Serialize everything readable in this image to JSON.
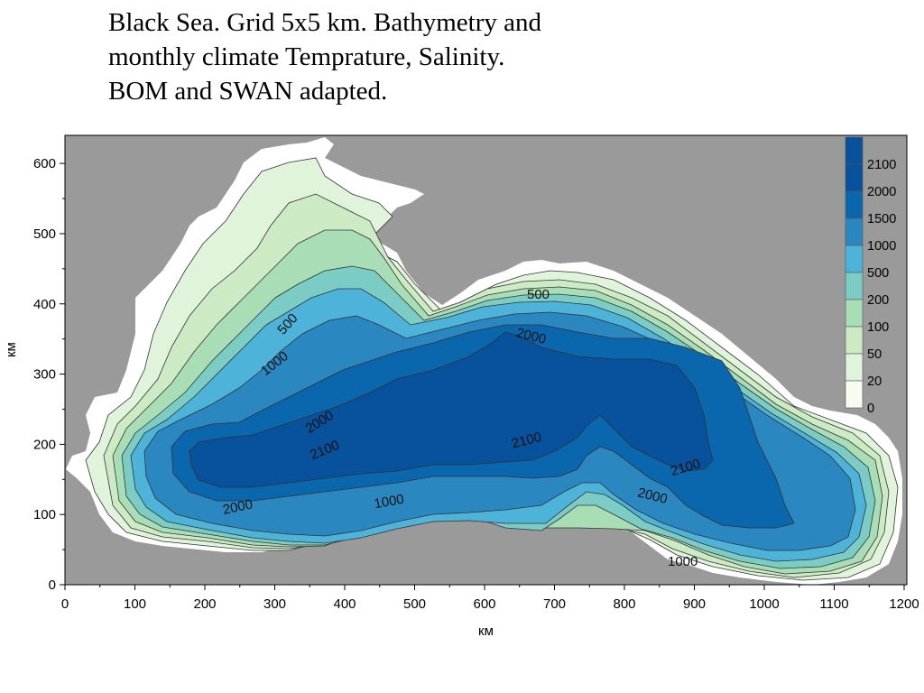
{
  "title": {
    "line1": "Black Sea. Grid 5x5 km. Bathymetry and",
    "line2": "monthly climate Temprature, Salinity.",
    "line3": "BOM and SWAN adapted."
  },
  "axes": {
    "xlabel": "км",
    "ylabel": "км",
    "xlim": [
      0,
      1200
    ],
    "ylim": [
      0,
      640
    ],
    "xticks": [
      "0",
      "100",
      "200",
      "300",
      "400",
      "500",
      "600",
      "700",
      "800",
      "900",
      "1000",
      "1100",
      "1200"
    ],
    "yticks": [
      "0",
      "100",
      "200",
      "300",
      "400",
      "500",
      "600"
    ]
  },
  "legend": {
    "labels": [
      "2100",
      "2000",
      "1500",
      "1000",
      "500",
      "200",
      "100",
      "50",
      "20",
      "0"
    ],
    "colors": [
      "#08519c",
      "#0a67ad",
      "#2b87c0",
      "#4eb3d8",
      "#7bccc4",
      "#a8ddb5",
      "#ccebc5",
      "#e0f3db",
      "#f7fcf0"
    ],
    "top_color": "#08519c"
  },
  "contour_labels": [
    "500",
    "1000",
    "2000",
    "2100",
    "500",
    "2000",
    "2000",
    "2100",
    "2100",
    "2000",
    "1000",
    "2000",
    "1000"
  ],
  "colors": {
    "land": "#9a9a9a",
    "coast": "#ffffff",
    "outline": "#333333"
  }
}
